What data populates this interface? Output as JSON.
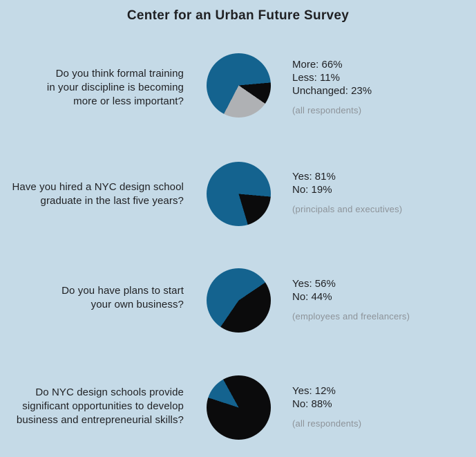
{
  "title": "Center for an Urban Future Survey",
  "colors": {
    "background": "#c5dae7",
    "teal": "#14638f",
    "black": "#0b0b0c",
    "gray": "#afb1b4",
    "text": "#1f2023",
    "note_gray": "#8d9399"
  },
  "sections": [
    {
      "question_lines": [
        "Do you think formal training",
        "in your discipline is becoming",
        "more or less important?"
      ],
      "legend_lines": [
        "More: 66%",
        "Less: 11%",
        "Unchanged: 23%"
      ],
      "note": "(all respondents)"
    },
    {
      "question_lines": [
        "Have you hired a NYC design school",
        "graduate in the last five years?"
      ],
      "legend_lines": [
        "Yes: 81%",
        "No: 19%"
      ],
      "note": "(principals and executives)"
    },
    {
      "question_lines": [
        "Do you have plans to start",
        "your own business?"
      ],
      "legend_lines": [
        "Yes: 56%",
        "No: 44%"
      ],
      "note": "(employees and freelancers)"
    },
    {
      "question_lines": [
        "Do NYC design schools provide",
        "significant opportunities to develop",
        "business and entrepreneurial skills?"
      ],
      "legend_lines": [
        "Yes: 12%",
        "No: 88%"
      ],
      "note": "(all respondents)"
    }
  ],
  "chart_data": [
    {
      "type": "pie",
      "title": "Do you think formal training in your discipline is becoming more or less important?",
      "categories": [
        "More",
        "Less",
        "Unchanged"
      ],
      "values": [
        66,
        11,
        23
      ],
      "respondents": "all respondents",
      "legend_position": "right",
      "start_deg": 85,
      "slices": [
        {
          "label": "Less",
          "value": 11,
          "color": "#0b0b0c"
        },
        {
          "label": "Unchanged",
          "value": 23,
          "color": "#afb1b4"
        },
        {
          "label": "More",
          "value": 66,
          "color": "#14638f"
        }
      ]
    },
    {
      "type": "pie",
      "title": "Have you hired a NYC design school graduate in the last five years?",
      "categories": [
        "Yes",
        "No"
      ],
      "values": [
        81,
        19
      ],
      "respondents": "principals and executives",
      "legend_position": "right",
      "start_deg": 95,
      "slices": [
        {
          "label": "No",
          "value": 19,
          "color": "#0b0b0c"
        },
        {
          "label": "Yes",
          "value": 81,
          "color": "#14638f"
        }
      ]
    },
    {
      "type": "pie",
      "title": "Do you have plans to start your own business?",
      "categories": [
        "Yes",
        "No"
      ],
      "values": [
        56,
        44
      ],
      "respondents": "employees and freelancers",
      "legend_position": "right",
      "start_deg": 56,
      "slices": [
        {
          "label": "No",
          "value": 44,
          "color": "#0b0b0c"
        },
        {
          "label": "Yes",
          "value": 56,
          "color": "#14638f"
        }
      ]
    },
    {
      "type": "pie",
      "title": "Do NYC design schools provide significant opportunities to develop business and entrepreneurial skills?",
      "categories": [
        "Yes",
        "No"
      ],
      "values": [
        12,
        88
      ],
      "respondents": "all respondents",
      "legend_position": "right",
      "start_deg": 288,
      "slices": [
        {
          "label": "Yes",
          "value": 12,
          "color": "#14638f"
        },
        {
          "label": "No",
          "value": 88,
          "color": "#0b0b0c"
        }
      ]
    }
  ]
}
